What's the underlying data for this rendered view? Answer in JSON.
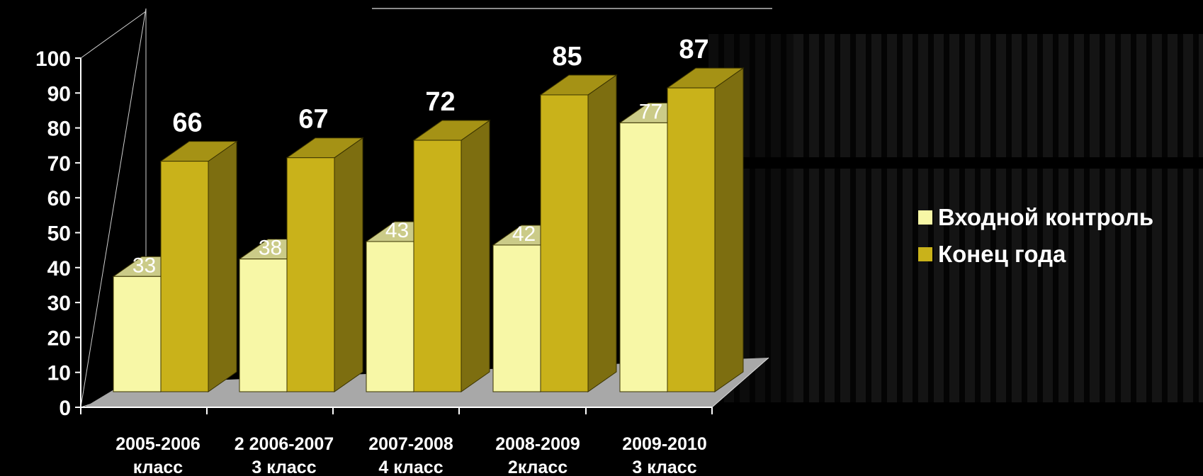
{
  "chart_data": {
    "type": "bar",
    "categories": [
      [
        "2005-2006",
        "класс"
      ],
      [
        "2 2006-2007",
        "3 класс"
      ],
      [
        "2007-2008",
        "4 класс"
      ],
      [
        "2008-2009",
        "2класс"
      ],
      [
        "2009-2010",
        "3 класс"
      ]
    ],
    "series": [
      {
        "name": "Входной контроль",
        "values": [
          33,
          38,
          43,
          42,
          77
        ],
        "color": "#f7f7a6"
      },
      {
        "name": "Конец года",
        "values": [
          66,
          67,
          72,
          85,
          87
        ],
        "color": "#c9b21a"
      }
    ],
    "ylim": [
      0,
      100
    ],
    "yticks": [
      "0",
      "10",
      "20",
      "30",
      "40",
      "50",
      "60",
      "70",
      "80",
      "90",
      "100"
    ],
    "legend_position": "right",
    "grid": false,
    "style": "3d"
  }
}
